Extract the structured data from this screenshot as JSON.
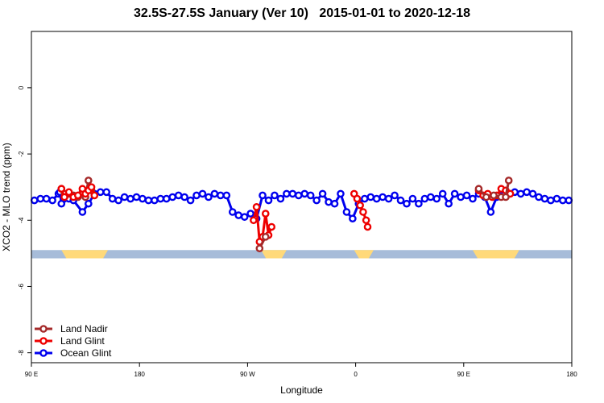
{
  "chart_data": {
    "type": "line",
    "title": "32.5S-27.5S January (Ver 10)   2015-01-01 to 2020-12-18",
    "xlabel": "Longitude",
    "ylabel": "XCO2 - MLO trend (ppm)",
    "xlim": [
      90,
      450
    ],
    "ylim": [
      -8.3,
      1.7
    ],
    "x_ticks": [
      {
        "value": 90,
        "label": "90 E"
      },
      {
        "value": 162,
        "label": "180"
      },
      {
        "value": 234,
        "label": "90 W"
      },
      {
        "value": 306,
        "label": "0"
      },
      {
        "value": 378,
        "label": "90 E"
      },
      {
        "value": 450,
        "label": "180"
      }
    ],
    "y_ticks": [
      {
        "value": 0,
        "label": "0"
      },
      {
        "value": -2,
        "label": "-2"
      },
      {
        "value": -4,
        "label": "-4"
      },
      {
        "value": -6,
        "label": "-6"
      },
      {
        "value": -8,
        "label": "-8"
      }
    ],
    "grid": false,
    "legend": {
      "placement": "bottom-left"
    },
    "land_band": {
      "y_range": [
        -5.15,
        -4.9
      ],
      "colors": {
        "ocean": "#a7bcd9",
        "land": "#ffd97a"
      },
      "land_x_ranges": [
        [
          110,
          141
        ],
        [
          243,
          260
        ],
        [
          305,
          318
        ],
        [
          384,
          415
        ]
      ]
    },
    "series": [
      {
        "name": "Land Nadir",
        "color": "#a52a2a",
        "x": [
          110,
          112,
          115,
          118,
          121,
          124,
          126,
          128,
          130
        ],
        "y": [
          -3.05,
          -3.2,
          -3.2,
          -3.25,
          -3.3,
          -3.15,
          -3.3,
          -2.8,
          -3.1
        ]
      },
      {
        "name": "Land Glint",
        "color": "#ee0000",
        "x": [
          110,
          112,
          115,
          118,
          121,
          124,
          126,
          128,
          130,
          132
        ],
        "y": [
          -3.05,
          -3.3,
          -3.15,
          -3.3,
          -3.25,
          -3.05,
          -3.2,
          -3.1,
          -3.0,
          -3.25
        ]
      },
      {
        "name": "Ocean Glint",
        "color": "#0000ee",
        "x": [
          92,
          96,
          100,
          104,
          108,
          109,
          110,
          115,
          118,
          124,
          128,
          132,
          136,
          140,
          144,
          148,
          152,
          156,
          160,
          164,
          168,
          172,
          176,
          180,
          184,
          188,
          192,
          196,
          200,
          204,
          208,
          212,
          216,
          220,
          224,
          228,
          232,
          236,
          240,
          244,
          248,
          252,
          256,
          260,
          264,
          268,
          272,
          276,
          280,
          284,
          288,
          292,
          296,
          300,
          304,
          308,
          312,
          316,
          320,
          324,
          328,
          332,
          336,
          340,
          344,
          348,
          352,
          356,
          360,
          364,
          368,
          372,
          376,
          380,
          384,
          388,
          392,
          396,
          400,
          404,
          408,
          412,
          416,
          420,
          424,
          428,
          432,
          436,
          440,
          444,
          448
        ],
        "y": [
          -3.4,
          -3.35,
          -3.35,
          -3.4,
          -3.2,
          -3.15,
          -3.5,
          -3.35,
          -3.4,
          -3.75,
          -3.5,
          -3.2,
          -3.15,
          -3.15,
          -3.35,
          -3.4,
          -3.3,
          -3.35,
          -3.3,
          -3.35,
          -3.4,
          -3.4,
          -3.35,
          -3.35,
          -3.3,
          -3.25,
          -3.3,
          -3.4,
          -3.25,
          -3.2,
          -3.3,
          -3.2,
          -3.25,
          -3.25,
          -3.75,
          -3.85,
          -3.9,
          -3.8,
          -3.95,
          -3.25,
          -3.4,
          -3.25,
          -3.35,
          -3.2,
          -3.2,
          -3.25,
          -3.2,
          -3.25,
          -3.4,
          -3.2,
          -3.45,
          -3.5,
          -3.2,
          -3.75,
          -3.95,
          -3.5,
          -3.35,
          -3.3,
          -3.35,
          -3.3,
          -3.35,
          -3.25,
          -3.4,
          -3.5,
          -3.35,
          -3.5,
          -3.35,
          -3.3,
          -3.35,
          -3.2,
          -3.5,
          -3.2,
          -3.3,
          -3.25,
          -3.35,
          -3.2,
          -3.3,
          -3.75,
          -3.3,
          -3.25,
          -3.2,
          -3.15,
          -3.2,
          -3.15,
          -3.2,
          -3.3,
          -3.35,
          -3.4,
          -3.35,
          -3.4,
          -3.4
        ]
      },
      {
        "name": "Land Glint",
        "color": "#ee0000",
        "x": [
          238,
          240,
          242,
          244,
          246,
          248,
          250
        ],
        "y": [
          -4.0,
          -3.6,
          -4.65,
          -4.5,
          -3.8,
          -4.45,
          -4.2
        ]
      },
      {
        "name": "Land Nadir",
        "color": "#a52a2a",
        "x": [
          242,
          246
        ],
        "y": [
          -4.85,
          -4.5
        ]
      },
      {
        "name": "Land Glint",
        "color": "#ee0000",
        "x": [
          305,
          307,
          309,
          311,
          313,
          314
        ],
        "y": [
          -3.2,
          -3.35,
          -3.55,
          -3.75,
          -4.0,
          -4.2
        ]
      },
      {
        "name": "Land Glint",
        "color": "#ee0000",
        "x": [
          388,
          391,
          394,
          397,
          400,
          403,
          406,
          409
        ],
        "y": [
          -3.1,
          -3.25,
          -3.2,
          -3.3,
          -3.25,
          -3.05,
          -3.1,
          -3.2
        ]
      },
      {
        "name": "Land Nadir",
        "color": "#a52a2a",
        "x": [
          388,
          393,
          398,
          403,
          406,
          408
        ],
        "y": [
          -3.05,
          -3.3,
          -3.25,
          -3.3,
          -3.3,
          -2.8
        ]
      }
    ],
    "legend_entries": [
      {
        "name": "Land Nadir",
        "color": "#a52a2a"
      },
      {
        "name": "Land Glint",
        "color": "#ee0000"
      },
      {
        "name": "Ocean Glint",
        "color": "#0000ee"
      }
    ]
  }
}
